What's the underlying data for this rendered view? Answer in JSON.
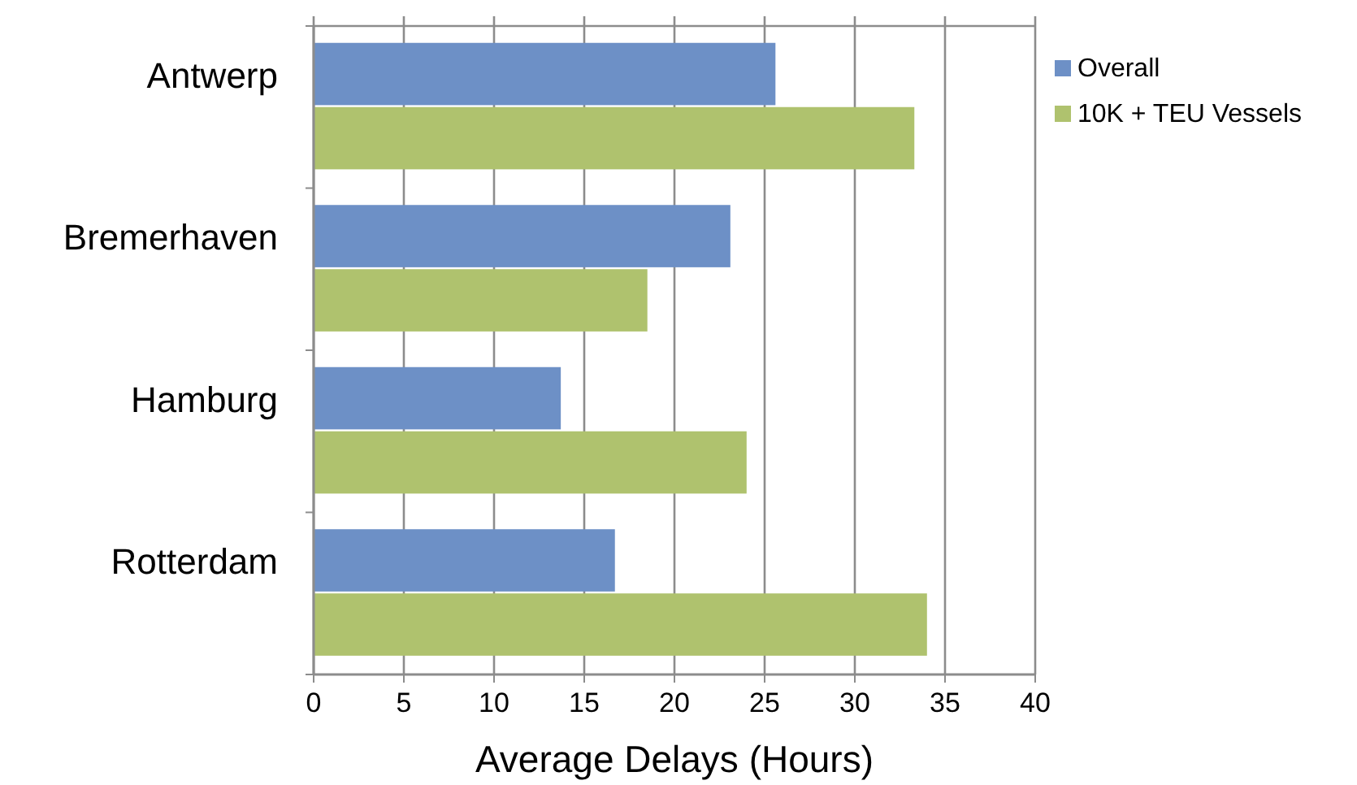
{
  "chart_data": {
    "type": "bar",
    "orientation": "horizontal",
    "xlabel": "Average Delays (Hours)",
    "categories": [
      "Antwerp",
      "Bremerhaven",
      "Hamburg",
      "Rotterdam"
    ],
    "series": [
      {
        "name": "Overall",
        "color": "#6d90c6",
        "values": [
          25.6,
          23.1,
          13.7,
          16.7
        ]
      },
      {
        "name": "10K + TEU Vessels",
        "color": "#afc26e",
        "values": [
          33.3,
          18.5,
          24.0,
          34.0
        ]
      }
    ],
    "xlim": [
      0,
      40
    ],
    "xticks": [
      0,
      5,
      10,
      15,
      20,
      25,
      30,
      35,
      40
    ],
    "grid": "x",
    "legend": "top right"
  }
}
